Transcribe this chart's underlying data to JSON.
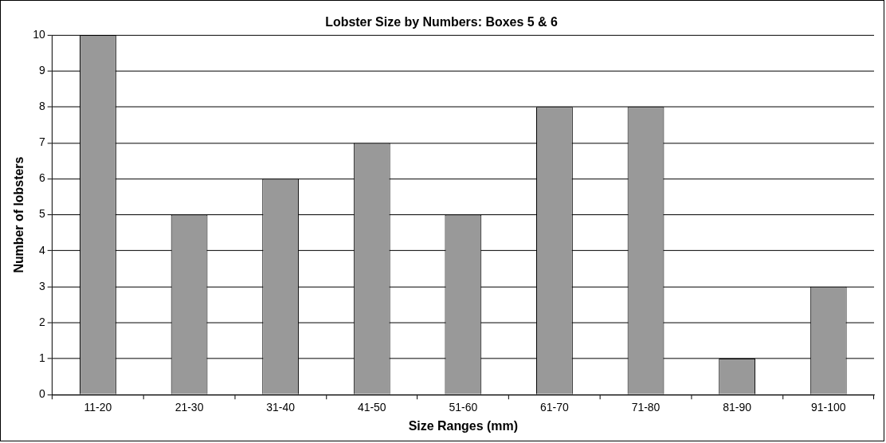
{
  "chart_data": {
    "type": "bar",
    "title": "Lobster Size by Numbers: Boxes 5 & 6",
    "xlabel": "Size Ranges (mm)",
    "ylabel": "Number of lobsters",
    "categories": [
      "11-20",
      "21-30",
      "31-40",
      "41-50",
      "51-60",
      "61-70",
      "71-80",
      "81-90",
      "91-100"
    ],
    "values": [
      10,
      5,
      6,
      7,
      5,
      8,
      8,
      1,
      3
    ],
    "color": "#999999",
    "ylim": [
      0,
      10
    ],
    "yticks": [
      0,
      1,
      2,
      3,
      4,
      5,
      6,
      7,
      8,
      9,
      10
    ],
    "grid": "y",
    "legend": false
  }
}
